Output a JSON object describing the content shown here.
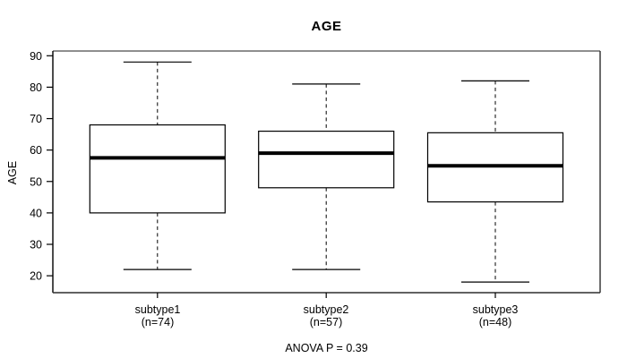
{
  "title": "AGE",
  "y_axis_label": "AGE",
  "footer_text": "ANOVA P = 0.39",
  "chart_data": {
    "type": "boxplot",
    "title": "AGE",
    "xlabel": "",
    "ylabel": "AGE",
    "annotation": "ANOVA P = 0.39",
    "ylim": [
      14.5,
      91.5
    ],
    "yticks": [
      20,
      30,
      40,
      50,
      60,
      70,
      80,
      90
    ],
    "grid": false,
    "legend": "none",
    "groups": [
      {
        "label": "subtype1",
        "sublabel": "(n=74)",
        "n": 74,
        "whisker_low": 22,
        "q1": 40,
        "median": 57.5,
        "q3": 68,
        "whisker_high": 88
      },
      {
        "label": "subtype2",
        "sublabel": "(n=57)",
        "n": 57,
        "whisker_low": 22,
        "q1": 48,
        "median": 59,
        "q3": 66,
        "whisker_high": 81
      },
      {
        "label": "subtype3",
        "sublabel": "(n=48)",
        "n": 48,
        "whisker_low": 18,
        "q1": 43.5,
        "median": 55,
        "q3": 65.5,
        "whisker_high": 82
      }
    ],
    "colors": {
      "line": "#000000",
      "box_fill": "#ffffff",
      "frame_top": "#8f8f8f",
      "frame": "#2e2e2e",
      "background": "#ffffff"
    }
  }
}
